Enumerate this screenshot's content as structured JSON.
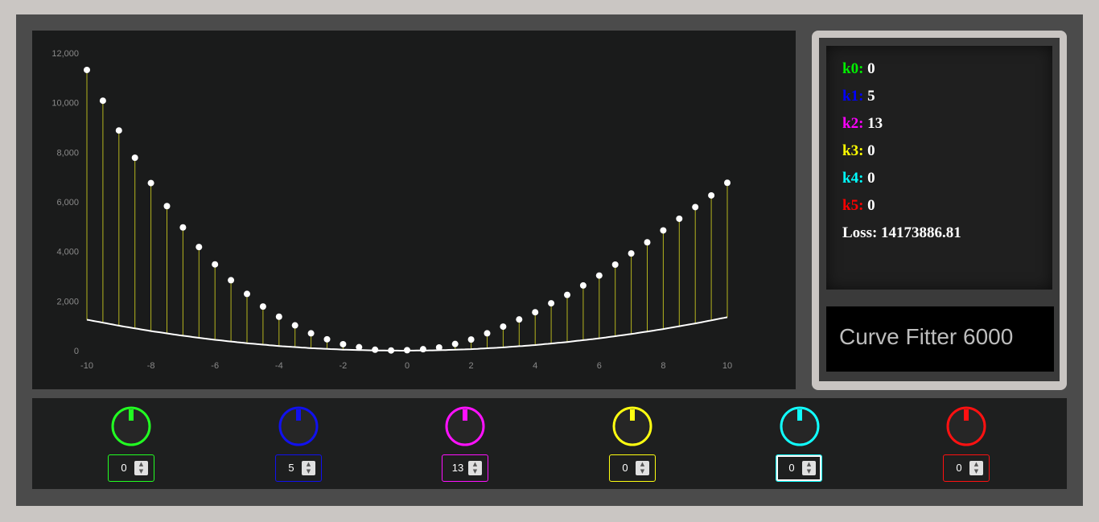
{
  "params": [
    {
      "label": "k0:",
      "value": "0",
      "color": "#00ee00"
    },
    {
      "label": "k1:",
      "value": "5",
      "color": "#0000ff"
    },
    {
      "label": "k2:",
      "value": "13",
      "color": "#ff00ff"
    },
    {
      "label": "k3:",
      "value": "0",
      "color": "#ffff00"
    },
    {
      "label": "k4:",
      "value": "0",
      "color": "#00ffff"
    },
    {
      "label": "k5:",
      "value": "0",
      "color": "#ff0000"
    }
  ],
  "loss": {
    "label": "Loss:",
    "value": "14173886.81"
  },
  "title": "Curve Fitter 6000",
  "controls": [
    {
      "knob": "k0",
      "value": "0",
      "color": "#22ff22"
    },
    {
      "knob": "k1",
      "value": "5",
      "color": "#1111ee"
    },
    {
      "knob": "k2",
      "value": "13",
      "color": "#ff11ff"
    },
    {
      "knob": "k3",
      "value": "0",
      "color": "#ffff11"
    },
    {
      "knob": "k4",
      "value": "0",
      "color": "#11ffff"
    },
    {
      "knob": "k5",
      "value": "0",
      "color": "#ff1111"
    }
  ],
  "spinner_icons": {
    "up": "chevron-up-icon",
    "down": "chevron-down-icon"
  },
  "chart_data": {
    "type": "scatter",
    "xlim": [
      -10,
      10
    ],
    "ylim": [
      0,
      12000
    ],
    "x_ticks": [
      "-10",
      "-8",
      "-6",
      "-4",
      "-2",
      "0",
      "2",
      "4",
      "6",
      "8",
      "10"
    ],
    "y_ticks": [
      "12,000",
      "10,000",
      "8,000",
      "6,000",
      "4,000",
      "2,000",
      "0"
    ],
    "grid": false,
    "colors": {
      "points": "#ffffff",
      "stems": "#b4b41e",
      "curve": "#ffffff"
    },
    "series": [
      {
        "x": [
          -10,
          -9.5,
          -9,
          -8.5,
          -8,
          -7.5,
          -7,
          -6.5,
          -6,
          -5.5,
          -5,
          -4.5,
          -4,
          -3.5,
          -3,
          -2.5,
          -2,
          -1.5,
          -1,
          -0.5,
          0,
          0.5,
          1,
          1.5,
          2,
          2.5,
          3,
          3.5,
          4,
          4.5,
          5,
          5.5,
          6,
          6.5,
          7,
          7.5,
          8,
          8.5,
          9,
          9.5,
          10
        ],
        "values": [
          11320,
          10080,
          8880,
          7780,
          6760,
          5830,
          4970,
          4180,
          3480,
          2840,
          2290,
          1780,
          1370,
          1020,
          700,
          460,
          260,
          140,
          40,
          10,
          20,
          60,
          130,
          270,
          450,
          700,
          970,
          1260,
          1550,
          1910,
          2250,
          2630,
          3030,
          3470,
          3920,
          4370,
          4850,
          5320,
          5790,
          6260,
          6770
        ]
      },
      {
        "x": [
          -10,
          -9,
          -8,
          -7,
          -6,
          -5,
          -4,
          -3,
          -2,
          -1,
          0,
          1,
          2,
          3,
          4,
          5,
          6,
          7,
          8,
          9,
          10
        ],
        "values": [
          1250,
          1008,
          792,
          602,
          438,
          300,
          188,
          102,
          42,
          8,
          0,
          18,
          62,
          132,
          228,
          350,
          498,
          672,
          872,
          1098,
          1350
        ]
      }
    ]
  }
}
